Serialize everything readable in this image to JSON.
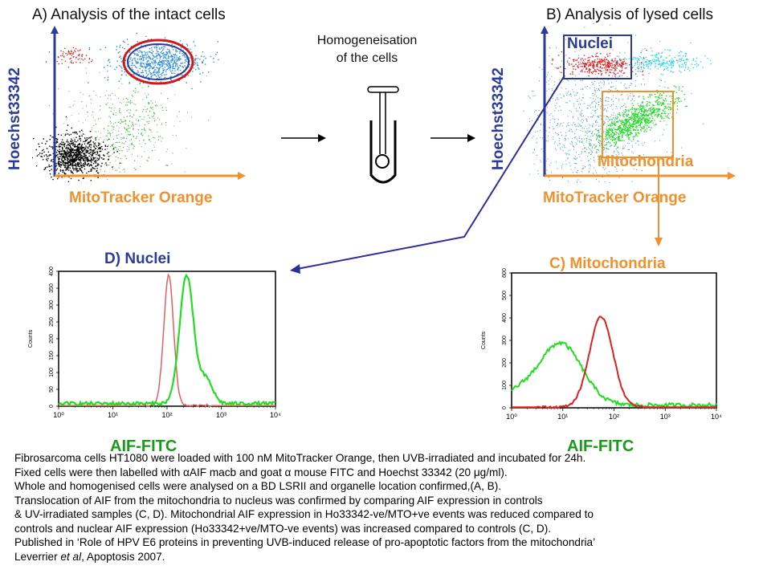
{
  "panel_a": {
    "title": "A) Analysis of the intact cells",
    "y_axis": "Hoechst33342",
    "x_axis": "MitoTracker Orange"
  },
  "process_step": {
    "line1": "Homogeneisation",
    "line2": "of the cells"
  },
  "panel_b": {
    "title": "B) Analysis of lysed cells",
    "y_axis": "Hoechst33342",
    "x_axis": "MitoTracker Orange",
    "gate_nuclei": "Nuclei",
    "gate_mito": "Mitochondria"
  },
  "panel_d": {
    "title": "D) Nuclei",
    "y_axis": "Counts",
    "x_axis": "AIF-FITC",
    "x_ticks": [
      "10⁰",
      "10¹",
      "10²",
      "10³",
      "10⁴"
    ],
    "y_ticks": [
      "0",
      "50",
      "100",
      "150",
      "200",
      "250",
      "300",
      "350",
      "400"
    ]
  },
  "panel_c": {
    "title": "C) Mitochondria",
    "y_axis": "Counts",
    "x_axis": "AIF-FITC",
    "x_ticks": [
      "10⁰",
      "10¹",
      "10²",
      "10³",
      "10⁴"
    ],
    "y_ticks": [
      "0",
      "100",
      "200",
      "300",
      "400",
      "500",
      "600"
    ]
  },
  "colors": {
    "blue_label": "#2b3b9c",
    "orange_label": "#f0912e",
    "green_series": "#22dd22",
    "red_series": "#dd2020",
    "arrow_blue": "#2e2e9a",
    "gate_red": "#d01818"
  },
  "caption": {
    "line1": "Fibrosarcoma cells HT1080 were loaded with 100 nM MitoTracker Orange, then UVB-irradiated and  incubated for 24h.",
    "line2": "Fixed cells were then labelled with αAIF macb and goat α mouse FITC and Hoechst 33342 (20 μg/ml).",
    "line3": "Whole and homogenised cells were analysed on a BD LSRII and organelle location confirmed,(A, B).",
    "line4": "Translocation of AIF from the mitochondria to nucleus was confirmed by comparing AIF expression in controls",
    "line5": "& UV-irradiated samples (C, D). Mitochondrial AIF expression in Ho33342-ve/MTO+ve events was reduced compared to",
    "line6": "controls and nuclear AIF expression (Ho33342+ve/MTO-ve events) was increased compared to controls (C, D).",
    "line7": "Published in ‘Role of HPV E6 proteins in preventing UVB-induced release of pro-apoptotic factors from the mitochondria’",
    "line8_a": "Leverrier ",
    "line8_em": "et al",
    "line8_b": ", Apoptosis 2007."
  }
}
